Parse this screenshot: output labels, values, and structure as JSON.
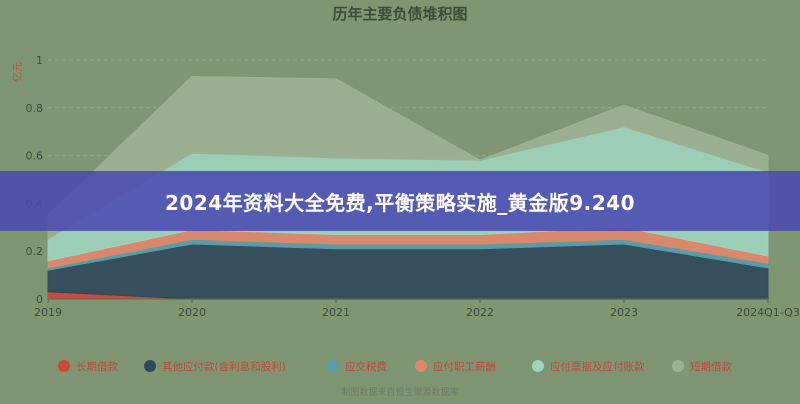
{
  "chart_data": {
    "type": "area",
    "title": "历年主要负债堆积图",
    "ylabel": "亿元",
    "categories": [
      "2019",
      "2020",
      "2021",
      "2022",
      "2023",
      "2024Q1-Q3"
    ],
    "yticks": [
      "0",
      "0.2",
      "0.4",
      "0.6",
      "0.8",
      "1"
    ],
    "ylim": [
      0,
      1
    ],
    "stacked": true,
    "series": [
      {
        "name": "长期借款",
        "color": "#d0453b",
        "values": [
          0.03,
          0.0,
          0.0,
          0.0,
          0.0,
          0.0
        ]
      },
      {
        "name": "其他应付款(含利息和股利)",
        "color": "#2f4a5a",
        "values": [
          0.09,
          0.23,
          0.21,
          0.21,
          0.23,
          0.13
        ]
      },
      {
        "name": "应交税费",
        "color": "#5b9ba8",
        "values": [
          0.01,
          0.02,
          0.02,
          0.02,
          0.02,
          0.02
        ]
      },
      {
        "name": "应付职工薪酬",
        "color": "#e0876a",
        "values": [
          0.03,
          0.04,
          0.04,
          0.04,
          0.05,
          0.03
        ]
      },
      {
        "name": "应付票据及应付账款",
        "color": "#9ed3bd",
        "values": [
          0.09,
          0.32,
          0.32,
          0.31,
          0.42,
          0.35
        ]
      },
      {
        "name": "短期借款",
        "color": "#9bb191",
        "values": [
          0.1,
          0.32,
          0.33,
          0.0,
          0.09,
          0.07
        ]
      }
    ],
    "legend_position": "bottom",
    "grid": true
  },
  "banner": {
    "text": "2024年资料大全免费,平衡策略实施_黄金版9.240"
  },
  "footer": {
    "text": "制图数据来自恒生聚源数据库"
  }
}
